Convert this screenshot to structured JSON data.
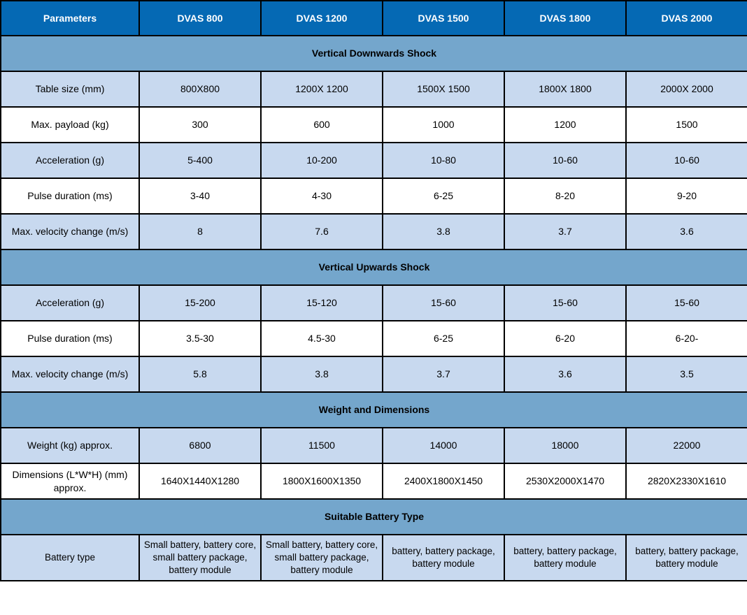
{
  "table": {
    "columns": [
      "Parameters",
      "DVAS 800",
      "DVAS 1200",
      "DVAS 1500",
      "DVAS 1800",
      "DVAS 2000"
    ],
    "sections": [
      {
        "title": "Vertical Downwards Shock",
        "rows": [
          {
            "label": "Table size (mm)",
            "values": [
              "800X800",
              "1200X 1200",
              "1500X 1500",
              "1800X 1800",
              "2000X 2000"
            ]
          },
          {
            "label": "Max. payload (kg)",
            "values": [
              "300",
              "600",
              "1000",
              "1200",
              "1500"
            ]
          },
          {
            "label": "Acceleration (g)",
            "values": [
              "5-400",
              "10-200",
              "10-80",
              "10-60",
              "10-60"
            ]
          },
          {
            "label": "Pulse duration (ms)",
            "values": [
              "3-40",
              "4-30",
              "6-25",
              "8-20",
              "9-20"
            ]
          },
          {
            "label": "Max. velocity change (m/s)",
            "values": [
              "8",
              "7.6",
              "3.8",
              "3.7",
              "3.6"
            ]
          }
        ]
      },
      {
        "title": "Vertical Upwards Shock",
        "rows": [
          {
            "label": "Acceleration (g)",
            "values": [
              "15-200",
              "15-120",
              "15-60",
              "15-60",
              "15-60"
            ]
          },
          {
            "label": "Pulse duration (ms)",
            "values": [
              "3.5-30",
              "4.5-30",
              "6-25",
              "6-20",
              "6-20-"
            ]
          },
          {
            "label": "Max. velocity change (m/s)",
            "values": [
              "5.8",
              "3.8",
              "3.7",
              "3.6",
              "3.5"
            ]
          }
        ]
      },
      {
        "title": "Weight and Dimensions",
        "rows": [
          {
            "label": "Weight (kg) approx.",
            "values": [
              "6800",
              "11500",
              "14000",
              "18000",
              "22000"
            ]
          },
          {
            "label": "Dimensions (L*W*H) (mm) approx.",
            "values": [
              "1640X1440X1280",
              "1800X1600X1350",
              "2400X1800X1450",
              "2530X2000X1470",
              "2820X2330X1610"
            ]
          }
        ]
      },
      {
        "title": "Suitable Battery Type",
        "rows": [
          {
            "label": "Battery type",
            "values": [
              "Small battery, battery core, small battery package, battery module",
              "Small battery, battery core, small battery package, battery module",
              "battery, battery package, battery module",
              "battery, battery package, battery module",
              "battery, battery package, battery module"
            ]
          }
        ]
      }
    ],
    "colors": {
      "header_bg": "#0569b4",
      "header_text": "#ffffff",
      "section_bg": "#74a6cc",
      "row_alt_bg": "#c8d9ef",
      "row_bg": "#ffffff",
      "border": "#000000"
    }
  }
}
